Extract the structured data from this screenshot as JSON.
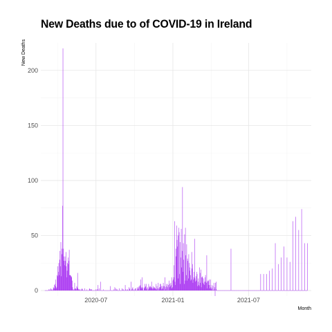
{
  "colors": {
    "bar": "#a020f0",
    "grid_major": "#e6e6e6",
    "grid_minor": "#f4f4f4",
    "background": "#ffffff"
  },
  "chart_data": {
    "type": "bar",
    "title": "New Deaths due to of COVID-19 in Ireland",
    "xlabel": "Month",
    "ylabel": "New Deaths",
    "grid": true,
    "legend": "none",
    "ylim": [
      -5,
      225
    ],
    "xlim": [
      "2020-02-20",
      "2021-11-28"
    ],
    "x_ticks": [
      {
        "date": "2020-07-01",
        "label": "2020-07"
      },
      {
        "date": "2021-01-01",
        "label": "2021-01"
      },
      {
        "date": "2021-07-01",
        "label": "2021-07"
      }
    ],
    "y_ticks": [
      0,
      50,
      100,
      150,
      200
    ],
    "start_date": "2020-03-01",
    "values": [
      0,
      0,
      0,
      0,
      0,
      0,
      0,
      0,
      0,
      1,
      1,
      0,
      0,
      1,
      2,
      0,
      1,
      1,
      0,
      0,
      3,
      2,
      5,
      2,
      6,
      4,
      10,
      2,
      3,
      14,
      13,
      22,
      17,
      25,
      14,
      28,
      36,
      22,
      44,
      13,
      33,
      38,
      77,
      220,
      38,
      31,
      27,
      23,
      31,
      27,
      35,
      22,
      12,
      18,
      25,
      30,
      24,
      27,
      37,
      14,
      14,
      14,
      13,
      13,
      12,
      9,
      3,
      1,
      0,
      1,
      1,
      7,
      2,
      1,
      2,
      1,
      4,
      3,
      16,
      2,
      1,
      1,
      1,
      1,
      0,
      0,
      1,
      0,
      1,
      2,
      1,
      0,
      0,
      0,
      0,
      2,
      0,
      0,
      0,
      0,
      1,
      0,
      0,
      0,
      0,
      0,
      1,
      2,
      1,
      1,
      0,
      1,
      1,
      0,
      0,
      0,
      0,
      0,
      0,
      0,
      0,
      1,
      0,
      0,
      1,
      0,
      1,
      5,
      0,
      0,
      2,
      0,
      0,
      8,
      0,
      0,
      0,
      0,
      0,
      0,
      1,
      0,
      0,
      0,
      0,
      0,
      0,
      0,
      0,
      0,
      0,
      0,
      0,
      0,
      0,
      0,
      4,
      0,
      0,
      0,
      0,
      0,
      0,
      0,
      0,
      1,
      0,
      3,
      0,
      2,
      0,
      1,
      0,
      1,
      0,
      0,
      0,
      0,
      2,
      0,
      0,
      0,
      0,
      0,
      2,
      0,
      1,
      0,
      1,
      0,
      0,
      0,
      5,
      1,
      0,
      0,
      1,
      0,
      1,
      0,
      0,
      3,
      2,
      1,
      0,
      0,
      8,
      1,
      0,
      2,
      3,
      0,
      1,
      0,
      0,
      1,
      2,
      0,
      2,
      0,
      0,
      3,
      2,
      1,
      3,
      4,
      0,
      4,
      5,
      10,
      2,
      3,
      12,
      2,
      3,
      0,
      0,
      2,
      3,
      6,
      3,
      4,
      6,
      1,
      2,
      3,
      0,
      1,
      6,
      2,
      4,
      3,
      4,
      3,
      2,
      8,
      3,
      2,
      1,
      4,
      2,
      3,
      3,
      2,
      2,
      1,
      6,
      1,
      4,
      2,
      0,
      7,
      2,
      1,
      3,
      6,
      3,
      6,
      4,
      1,
      4,
      2,
      1,
      7,
      4,
      4,
      0,
      12,
      3,
      1,
      6,
      4,
      0,
      3,
      6,
      5,
      0,
      9,
      3,
      6,
      4,
      7,
      5,
      12,
      2,
      3,
      9,
      10,
      12,
      23,
      63,
      8,
      5,
      38,
      31,
      59,
      46,
      40,
      50,
      11,
      57,
      53,
      15,
      44,
      6,
      30,
      56,
      21,
      36,
      94,
      17,
      43,
      28,
      6,
      51,
      9,
      57,
      32,
      14,
      42,
      9,
      29,
      27,
      11,
      33,
      25,
      18,
      21,
      14,
      9,
      10,
      35,
      20,
      24,
      7,
      10,
      12,
      17,
      47,
      11,
      8,
      13,
      9,
      17,
      15,
      4,
      8,
      11,
      5,
      4,
      21,
      7,
      16,
      19,
      3,
      12,
      12,
      13,
      7,
      11,
      6,
      8,
      5,
      12,
      14,
      8,
      7,
      32,
      2,
      9,
      8,
      9,
      5,
      10,
      5,
      2,
      10,
      3,
      1,
      2,
      5,
      0,
      4,
      0,
      7,
      1,
      3,
      -5,
      7,
      1,
      8,
      0,
      0,
      0,
      0,
      0,
      0,
      0,
      0,
      0,
      0,
      0,
      0,
      0,
      0,
      0,
      0,
      0,
      0,
      0,
      0,
      0,
      0,
      0,
      0,
      0,
      0,
      0,
      0,
      0,
      0,
      0,
      0,
      0,
      0,
      38,
      0,
      0,
      0,
      0,
      0,
      0,
      0,
      0,
      0,
      0,
      0,
      0,
      0,
      0,
      0,
      0,
      0,
      0,
      0,
      0,
      0,
      0,
      0,
      0,
      0,
      0,
      0,
      0,
      0,
      0,
      0,
      0,
      0,
      0,
      0,
      0,
      0,
      0,
      0,
      0,
      0,
      0,
      0,
      0,
      0,
      0,
      0,
      0,
      0,
      0,
      0,
      0,
      0,
      0,
      0,
      0,
      0,
      0,
      0,
      0,
      0,
      0,
      0,
      0,
      0,
      0,
      0,
      0,
      0,
      0,
      15,
      0,
      0,
      0,
      0,
      0,
      0,
      15,
      0,
      0,
      0,
      0,
      0,
      0,
      15,
      0,
      0,
      0,
      0,
      0,
      0,
      18,
      0,
      0,
      0,
      0,
      0,
      0,
      20,
      0,
      0,
      0,
      0,
      0,
      0,
      43,
      0,
      0,
      0,
      0,
      0,
      0,
      24,
      0,
      0,
      0,
      0,
      0,
      0,
      30,
      0,
      0,
      0,
      0,
      0,
      0,
      40,
      0,
      0,
      0,
      0,
      0,
      0,
      30,
      0,
      0,
      0,
      0,
      0,
      0,
      26,
      0,
      0,
      0,
      0,
      0,
      0,
      63,
      0,
      0,
      0,
      0,
      0,
      0,
      67,
      0,
      0,
      0,
      0,
      0,
      0,
      55,
      0,
      0,
      0,
      0,
      0,
      0,
      74,
      0,
      0,
      0,
      0,
      0,
      0,
      43,
      0,
      0,
      0,
      0,
      0,
      0,
      43
    ]
  }
}
